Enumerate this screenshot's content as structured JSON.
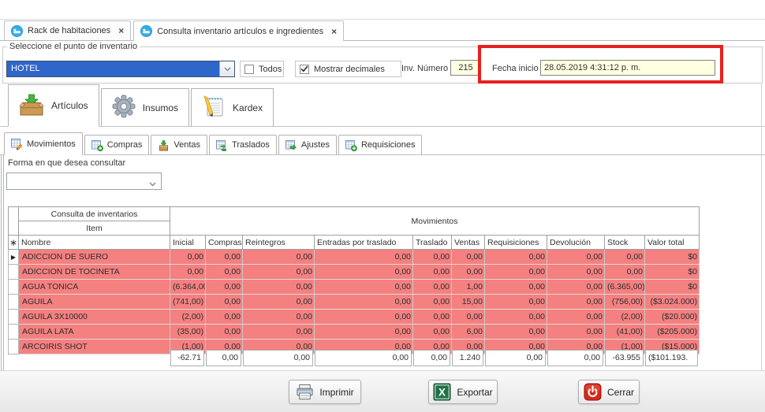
{
  "colors": {
    "annotation-red": "#E8201E",
    "row-pink": "#F48080",
    "selection-blue": "#2E66C9",
    "field-yellow": "#FFFFE1"
  },
  "window": {
    "tabs": [
      {
        "label": "Rack de habitaciones",
        "icon": "inventory-app-icon",
        "close_glyph": "×",
        "active": false
      },
      {
        "label": "Consulta inventario artículos e ingredientes",
        "icon": "inventory-app-icon",
        "close_glyph": "×",
        "active": true
      }
    ]
  },
  "inventory_point": {
    "group_title": "Seleccione el punto de inventario",
    "combo_value": "HOTEL",
    "todos": {
      "label": "Todos",
      "checked": false
    },
    "mostrar_decimales": {
      "label": "Mostrar decimales",
      "checked": true
    },
    "inv_numero_label": "Inv. Número",
    "inv_numero_value": "215",
    "fecha_inicio_label": "Fecha inicio",
    "fecha_inicio_value": "28.05.2019 4:31:12 p. m."
  },
  "main_tabs": [
    {
      "label": "Artículos",
      "icon": "box-download-icon",
      "active": true
    },
    {
      "label": "Insumos",
      "icon": "gear-icon",
      "active": false
    },
    {
      "label": "Kardex",
      "icon": "notepad-pencil-icon",
      "active": false
    }
  ],
  "sub_tabs": [
    {
      "label": "Movimientos",
      "icon": "grid-edit-icon",
      "active": true
    },
    {
      "label": "Compras",
      "icon": "grid-add-icon",
      "active": false
    },
    {
      "label": "Ventas",
      "icon": "box-arrow-icon",
      "active": false
    },
    {
      "label": "Traslados",
      "icon": "grid-transfer-icon",
      "active": false
    },
    {
      "label": "Ajustes",
      "icon": "grid-arrow-icon",
      "active": false
    },
    {
      "label": "Requisiciones",
      "icon": "grid-add-circle-icon",
      "active": false
    }
  ],
  "query_form": {
    "label": "Forma en que desea consultar",
    "combo_value": ""
  },
  "table": {
    "group_header_left": "Consulta de inventarios",
    "group_header_item": "Item",
    "group_header_right": "Movimientos",
    "header_marker": "∗",
    "row_cursor_glyph": "▶",
    "columns": [
      "Nombre",
      "Inicial",
      "Compras",
      "Reintegros",
      "Entradas por traslado",
      "Traslado",
      "Ventas",
      "Requisiciones",
      "Devolución",
      "Stock",
      "Valor total"
    ],
    "rows": [
      {
        "selected": true,
        "name": "ADICCION DE SUERO",
        "values": [
          "0,00",
          "0,00",
          "0,00",
          "0,00",
          "0,00",
          "0,00",
          "0,00",
          "0,00",
          "0,00",
          "$0"
        ]
      },
      {
        "selected": false,
        "name": "ADICCION DE TOCINETA",
        "values": [
          "0,00",
          "0,00",
          "0,00",
          "0,00",
          "0,00",
          "0,00",
          "0,00",
          "0,00",
          "0,00",
          "$0"
        ]
      },
      {
        "selected": false,
        "name": "AGUA TONICA",
        "values": [
          "(6.364,00)",
          "0,00",
          "0,00",
          "0,00",
          "0,00",
          "1,00",
          "0,00",
          "0,00",
          "(6.365,00)",
          "$0"
        ]
      },
      {
        "selected": false,
        "name": "AGUILA",
        "values": [
          "(741,00)",
          "0,00",
          "0,00",
          "0,00",
          "0,00",
          "15,00",
          "0,00",
          "0,00",
          "(756,00)",
          "($3.024.000)"
        ]
      },
      {
        "selected": false,
        "name": "AGUILA 3X10000",
        "values": [
          "(2,00)",
          "0,00",
          "0,00",
          "0,00",
          "0,00",
          "0,00",
          "0,00",
          "0,00",
          "(2,00)",
          "($20.000)"
        ]
      },
      {
        "selected": false,
        "name": "AGUILA LATA",
        "values": [
          "(35,00)",
          "0,00",
          "0,00",
          "0,00",
          "0,00",
          "6,00",
          "0,00",
          "0,00",
          "(41,00)",
          "($205.000)"
        ]
      },
      {
        "selected": false,
        "name": "ARCOIRIS SHOT",
        "values": [
          "(1,00)",
          "0,00",
          "0,00",
          "0,00",
          "0,00",
          "0,00",
          "0,00",
          "0,00",
          "(1,00)",
          "($15.000)"
        ]
      }
    ],
    "totals": [
      "-62.71",
      "0,00",
      "0,00",
      "0,00",
      "0,00",
      "1.240",
      "0,00",
      "0,00",
      "-63.955",
      "($101.193."
    ]
  },
  "footer": {
    "buttons": [
      {
        "label": "Imprimir",
        "icon": "printer-icon"
      },
      {
        "label": "Exportar",
        "icon": "excel-icon"
      },
      {
        "label": "Cerrar",
        "icon": "power-icon"
      }
    ]
  }
}
